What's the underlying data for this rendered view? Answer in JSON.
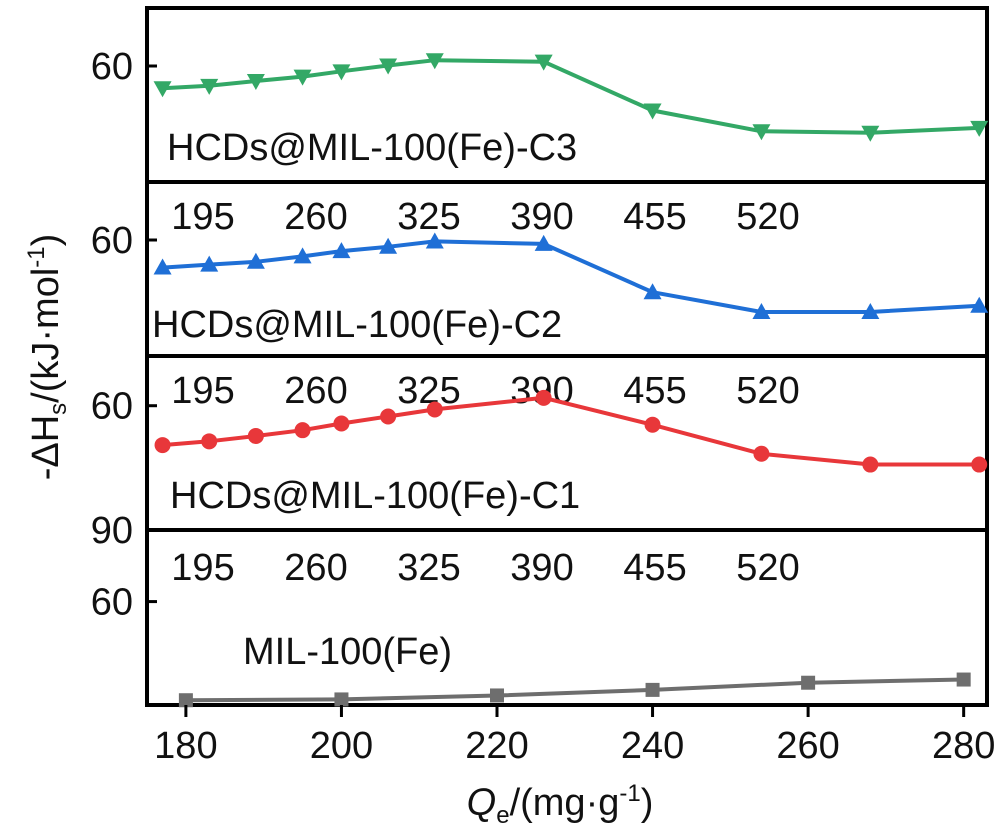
{
  "chart_data": {
    "type": "line",
    "xlabel": {
      "prefix": "Q",
      "sub": "e",
      "suffix": "/(mg·g",
      "sup": "-1",
      "end": ")"
    },
    "ylabel": {
      "prefix": "-ΔH",
      "sub": "s",
      "suffix": "/(kJ·mol",
      "sup": "-1",
      "end": ")"
    },
    "xlim": [
      175,
      283
    ],
    "xticks": [
      180,
      200,
      220,
      240,
      260,
      280
    ],
    "top_axis_ticks": [
      "195",
      "260",
      "325",
      "390",
      "455",
      "520"
    ],
    "panels": [
      {
        "name": "HCDs@MIL-100(Fe)-C3",
        "color": "#33a866",
        "marker": "triangle-down",
        "ylim": [
          48,
          84
        ],
        "yticks": [
          {
            "value": 60,
            "label": "60"
          }
        ],
        "x": [
          177,
          183,
          189,
          195,
          200,
          206,
          212,
          226,
          240,
          254,
          268,
          282
        ],
        "y": [
          64.6,
          64.1,
          63.1,
          62.2,
          61.1,
          59.9,
          58.8,
          59.1,
          69.2,
          73.5,
          73.8,
          72.8
        ],
        "top_labels": false
      },
      {
        "name": "HCDs@MIL-100(Fe)-C2",
        "color": "#1f6fd6",
        "marker": "triangle-up",
        "ylim": [
          48,
          84
        ],
        "yticks": [
          {
            "value": 60,
            "label": "60"
          }
        ],
        "x": [
          177,
          183,
          189,
          195,
          200,
          206,
          212,
          226,
          240,
          254,
          268,
          282
        ],
        "y": [
          65.7,
          65.1,
          64.5,
          63.4,
          62.3,
          61.4,
          60.3,
          60.8,
          70.8,
          74.9,
          74.9,
          73.6
        ],
        "top_labels": true
      },
      {
        "name": "HCDs@MIL-100(Fe)-C1",
        "color": "#e8373a",
        "marker": "circle",
        "ylim": [
          48,
          90
        ],
        "yticks": [
          {
            "value": 60,
            "label": "60"
          },
          {
            "value": 90,
            "label": "90"
          }
        ],
        "x": [
          177,
          183,
          189,
          195,
          200,
          206,
          212,
          226,
          240,
          254,
          268,
          282
        ],
        "y": [
          69.5,
          68.6,
          67.3,
          65.9,
          64.3,
          62.6,
          60.9,
          58.1,
          64.6,
          71.6,
          74.2,
          74.2
        ],
        "top_labels": true
      },
      {
        "name": "MIL-100(Fe)",
        "color": "#6e6e6e",
        "marker": "square",
        "ylim": [
          51,
          73
        ],
        "yticks": [
          {
            "value": 60,
            "label": "60"
          }
        ],
        "x": [
          180,
          200,
          220,
          240,
          260,
          280
        ],
        "y": [
          72.4,
          72.3,
          71.8,
          71.1,
          70.2,
          69.8
        ],
        "top_labels": true
      }
    ]
  }
}
